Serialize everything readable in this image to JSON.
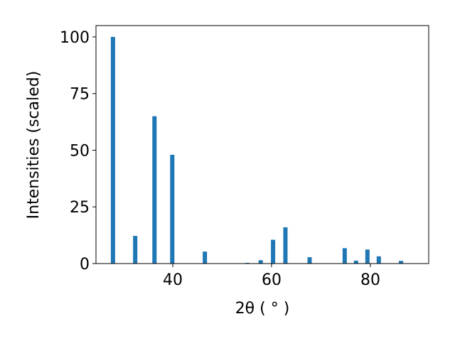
{
  "chart_data": {
    "type": "bar",
    "x_label": "2θ ( ° )",
    "y_label": "Intensities (scaled)",
    "x": [
      27.9,
      32.4,
      36.3,
      39.9,
      46.5,
      55.1,
      57.8,
      60.3,
      62.8,
      67.7,
      74.8,
      77.1,
      79.4,
      81.7,
      86.2
    ],
    "values": [
      100,
      12.2,
      65,
      48,
      5.3,
      0.3,
      1.5,
      10.5,
      16,
      2.8,
      6.8,
      1.3,
      6.2,
      3.2,
      1.2
    ],
    "color": "#1f77b4",
    "xlim": [
      24.46,
      91.8
    ],
    "xticks": [
      40,
      60,
      80
    ],
    "ylim": [
      0,
      105
    ],
    "yticks": [
      0,
      25,
      50,
      75,
      100
    ],
    "grid": false
  }
}
